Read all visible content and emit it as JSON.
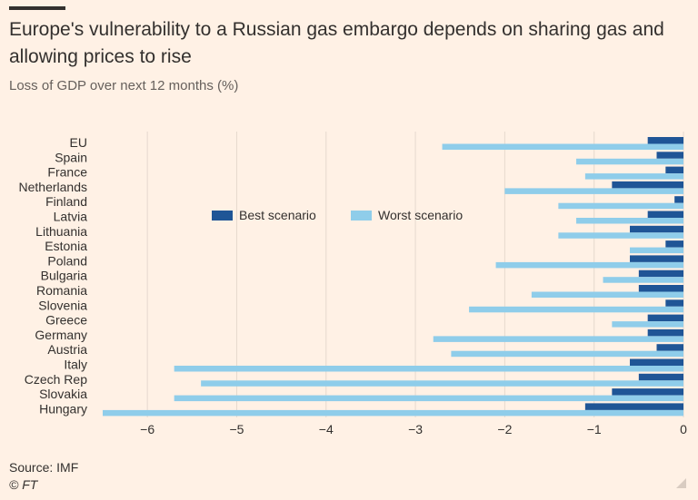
{
  "header": {
    "title": "Europe's vulnerability to a Russian gas embargo depends on sharing gas and allowing prices to rise",
    "subtitle": "Loss of GDP over next 12 months (%)"
  },
  "footer": {
    "source": "Source: IMF",
    "credit": "© FT"
  },
  "colors": {
    "best": "#1F5596",
    "worst": "#8FCDEA",
    "grid": "#E6D9CE",
    "text": "#33302E"
  },
  "chart_data": {
    "type": "bar",
    "orientation": "horizontal",
    "categories": [
      "EU",
      "Spain",
      "France",
      "Netherlands",
      "Finland",
      "Latvia",
      "Lithuania",
      "Estonia",
      "Poland",
      "Bulgaria",
      "Romania",
      "Slovenia",
      "Greece",
      "Germany",
      "Austria",
      "Italy",
      "Czech Rep",
      "Slovakia",
      "Hungary"
    ],
    "series": [
      {
        "name": "Best scenario",
        "values": [
          -0.4,
          -0.3,
          -0.2,
          -0.8,
          -0.1,
          -0.4,
          -0.6,
          -0.2,
          -0.6,
          -0.5,
          -0.5,
          -0.2,
          -0.4,
          -0.4,
          -0.3,
          -0.6,
          -0.5,
          -0.8,
          -1.1
        ]
      },
      {
        "name": "Worst scenario",
        "values": [
          -2.7,
          -1.2,
          -1.1,
          -2.0,
          -1.4,
          -1.2,
          -1.4,
          -0.6,
          -2.1,
          -0.9,
          -1.7,
          -2.4,
          -0.8,
          -2.8,
          -2.6,
          -5.7,
          -5.4,
          -5.7,
          -6.5
        ]
      }
    ],
    "xlim": [
      -6.5,
      0
    ],
    "xticks": [
      -6,
      -5,
      -4,
      -3,
      -2,
      -1,
      0
    ],
    "xtick_labels": [
      "−6",
      "−5",
      "−4",
      "−3",
      "−2",
      "−1",
      "0"
    ],
    "grid": true,
    "legend_position": "top-center"
  }
}
